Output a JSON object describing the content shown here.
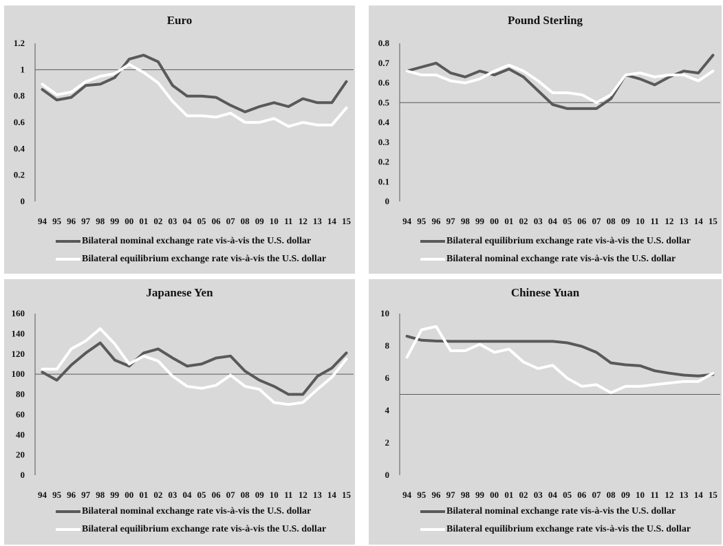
{
  "colors": {
    "panel": "#d9d9d9",
    "nominal": "#595959",
    "equilibrium": "#ffffff",
    "axis": "#595959"
  },
  "chart_data": [
    {
      "type": "line",
      "title": "Euro",
      "categories": [
        "94",
        "95",
        "96",
        "97",
        "98",
        "99",
        "00",
        "01",
        "02",
        "03",
        "04",
        "05",
        "06",
        "07",
        "08",
        "09",
        "10",
        "11",
        "12",
        "13",
        "14",
        "15"
      ],
      "ylim": [
        0,
        1.2
      ],
      "yticks": [
        "0",
        "0.2",
        "0.4",
        "0.6",
        "0.8",
        "1",
        "1.2"
      ],
      "reference_line": 1,
      "series": [
        {
          "name": "Bilateral nominal exchange rate vis-à-vis the U.S. dollar",
          "color": "#595959",
          "values": [
            0.85,
            0.77,
            0.79,
            0.88,
            0.89,
            0.94,
            1.08,
            1.11,
            1.06,
            0.88,
            0.8,
            0.8,
            0.79,
            0.73,
            0.68,
            0.72,
            0.75,
            0.72,
            0.78,
            0.75,
            0.75,
            0.91
          ]
        },
        {
          "name": "Bilateral equilibrium exchange rate vis-à-vis the U.S. dollar",
          "color": "#ffffff",
          "values": [
            0.89,
            0.81,
            0.83,
            0.91,
            0.95,
            0.97,
            1.04,
            0.98,
            0.9,
            0.76,
            0.65,
            0.65,
            0.64,
            0.67,
            0.6,
            0.6,
            0.63,
            0.57,
            0.6,
            0.58,
            0.58,
            0.71
          ]
        }
      ]
    },
    {
      "type": "line",
      "title": "Pound Sterling",
      "categories": [
        "94",
        "95",
        "96",
        "97",
        "98",
        "99",
        "00",
        "01",
        "02",
        "03",
        "04",
        "05",
        "06",
        "07",
        "08",
        "09",
        "10",
        "11",
        "12",
        "13",
        "14",
        "15"
      ],
      "ylim": [
        0,
        0.8
      ],
      "yticks": [
        "0",
        "0.1",
        "0.2",
        "0.3",
        "0.4",
        "0.5",
        "0.6",
        "0.7",
        "0.8"
      ],
      "reference_line": 0.5,
      "series": [
        {
          "name": "Bilateral equilibrium exchange rate vis-à-vis the U.S. dollar",
          "color": "#595959",
          "values": [
            0.66,
            0.68,
            0.7,
            0.65,
            0.63,
            0.66,
            0.64,
            0.67,
            0.63,
            0.56,
            0.49,
            0.47,
            0.47,
            0.47,
            0.52,
            0.64,
            0.62,
            0.59,
            0.63,
            0.66,
            0.65,
            0.74
          ]
        },
        {
          "name": "Bilateral nominal exchange rate vis-à-vis the U.S. dollar",
          "color": "#ffffff",
          "values": [
            0.66,
            0.64,
            0.64,
            0.61,
            0.6,
            0.62,
            0.66,
            0.69,
            0.66,
            0.61,
            0.55,
            0.55,
            0.54,
            0.5,
            0.54,
            0.64,
            0.65,
            0.63,
            0.64,
            0.64,
            0.61,
            0.66
          ]
        }
      ]
    },
    {
      "type": "line",
      "title": "Japanese Yen",
      "categories": [
        "94",
        "95",
        "96",
        "97",
        "98",
        "99",
        "00",
        "01",
        "02",
        "03",
        "04",
        "05",
        "06",
        "07",
        "08",
        "09",
        "10",
        "11",
        "12",
        "13",
        "14",
        "15"
      ],
      "ylim": [
        0,
        160
      ],
      "yticks": [
        "0",
        "20",
        "40",
        "60",
        "80",
        "100",
        "120",
        "140",
        "160"
      ],
      "reference_line": 100,
      "series": [
        {
          "name": "Bilateral nominal exchange rate vis-à-vis the U.S. dollar",
          "color": "#595959",
          "values": [
            102,
            94,
            109,
            121,
            131,
            114,
            108,
            121,
            125,
            116,
            108,
            110,
            116,
            118,
            103,
            94,
            88,
            80,
            80,
            98,
            106,
            121
          ]
        },
        {
          "name": "Bilateral equilibrium exchange rate vis-à-vis the U.S. dollar",
          "color": "#ffffff",
          "values": [
            105,
            105,
            125,
            133,
            145,
            130,
            110,
            118,
            113,
            98,
            88,
            86,
            89,
            99,
            88,
            85,
            72,
            70,
            72,
            85,
            97,
            115
          ]
        }
      ]
    },
    {
      "type": "line",
      "title": "Chinese Yuan",
      "categories": [
        "94",
        "95",
        "96",
        "97",
        "98",
        "99",
        "00",
        "01",
        "02",
        "03",
        "04",
        "05",
        "06",
        "07",
        "08",
        "09",
        "10",
        "11",
        "12",
        "13",
        "14",
        "15"
      ],
      "ylim": [
        0,
        10
      ],
      "yticks": [
        "0",
        "2",
        "4",
        "6",
        "8",
        "10"
      ],
      "reference_line": 5,
      "series": [
        {
          "name": "Bilateral nominal exchange rate vis-à-vis the U.S. dollar",
          "color": "#595959",
          "values": [
            8.6,
            8.35,
            8.3,
            8.28,
            8.28,
            8.28,
            8.28,
            8.28,
            8.28,
            8.28,
            8.28,
            8.19,
            7.97,
            7.6,
            6.95,
            6.83,
            6.77,
            6.46,
            6.31,
            6.19,
            6.14,
            6.23
          ]
        },
        {
          "name": "Bilateral equilibrium exchange rate vis-à-vis the U.S. dollar",
          "color": "#ffffff",
          "values": [
            7.3,
            9.0,
            9.2,
            7.7,
            7.7,
            8.1,
            7.6,
            7.8,
            7.0,
            6.6,
            6.8,
            6.0,
            5.5,
            5.6,
            5.1,
            5.5,
            5.5,
            5.6,
            5.7,
            5.8,
            5.8,
            6.3
          ]
        }
      ]
    }
  ]
}
